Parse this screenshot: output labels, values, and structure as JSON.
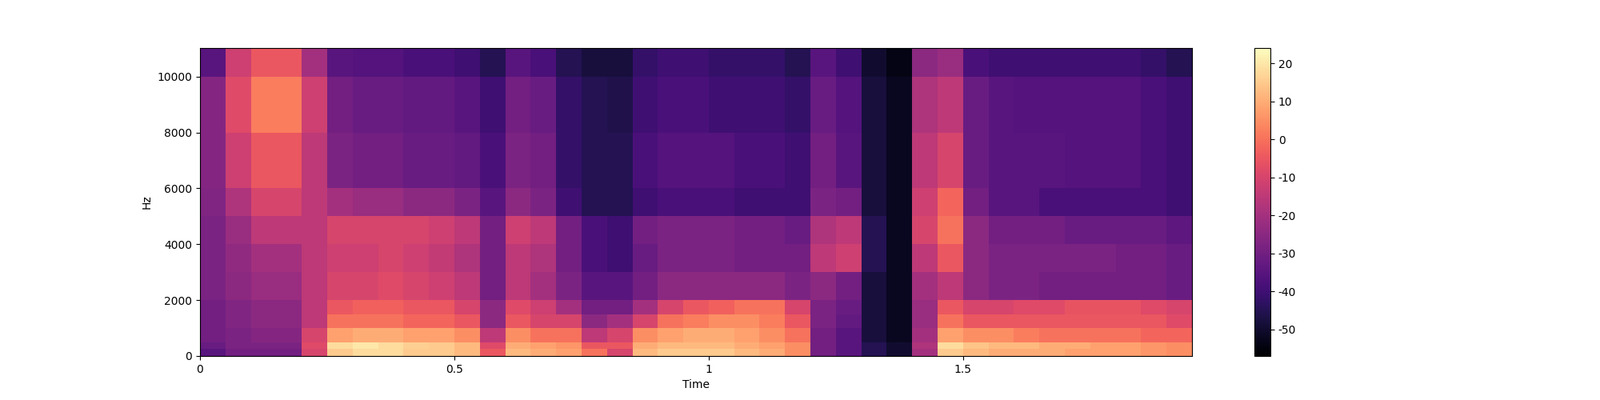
{
  "chart_data": {
    "type": "heatmap",
    "x_label": "Time",
    "y_label": "Hz",
    "xlim": [
      0,
      1.95
    ],
    "xticks": [
      0,
      0.5,
      1,
      1.5
    ],
    "ylim": [
      0,
      11025
    ],
    "yticks": [
      0,
      2000,
      4000,
      6000,
      8000,
      10000
    ],
    "x_edges": [
      0,
      0.05,
      0.1,
      0.15,
      0.2,
      0.25,
      0.3,
      0.35,
      0.4,
      0.45,
      0.5,
      0.55,
      0.6,
      0.65,
      0.7,
      0.75,
      0.8,
      0.85,
      0.9,
      0.95,
      1,
      1.05,
      1.1,
      1.15,
      1.2,
      1.25,
      1.3,
      1.35,
      1.4,
      1.45,
      1.5,
      1.55,
      1.6,
      1.65,
      1.7,
      1.75,
      1.8,
      1.85,
      1.9,
      1.95
    ],
    "y_edges": [
      0,
      250,
      500,
      1000,
      1500,
      2000,
      3000,
      4000,
      5000,
      6000,
      8000,
      10000,
      11025
    ],
    "cells": [
      [
        -35,
        -30,
        -30,
        -30,
        -10,
        15,
        18,
        18,
        15,
        15,
        12,
        -5,
        12,
        10,
        8,
        0,
        -10,
        12,
        15,
        15,
        15,
        12,
        10,
        5,
        -30,
        -35,
        -45,
        -50,
        -20,
        15,
        12,
        10,
        10,
        10,
        8,
        8,
        8,
        6,
        5
      ],
      [
        -32,
        -28,
        -28,
        -28,
        -8,
        18,
        20,
        18,
        16,
        15,
        12,
        -8,
        10,
        8,
        6,
        -5,
        -5,
        10,
        12,
        12,
        12,
        10,
        8,
        5,
        -30,
        -35,
        -45,
        -50,
        -18,
        18,
        14,
        12,
        12,
        10,
        10,
        8,
        8,
        6,
        5
      ],
      [
        -30,
        -28,
        -26,
        -26,
        -10,
        8,
        10,
        10,
        8,
        8,
        5,
        -15,
        5,
        0,
        0,
        -15,
        -10,
        5,
        8,
        10,
        10,
        8,
        5,
        0,
        -30,
        -35,
        -48,
        -52,
        -20,
        8,
        5,
        5,
        2,
        0,
        0,
        0,
        0,
        -2,
        -2
      ],
      [
        -30,
        -27,
        -25,
        -25,
        -15,
        0,
        0,
        0,
        -2,
        -2,
        -5,
        -25,
        -5,
        -10,
        -10,
        -25,
        -20,
        -10,
        0,
        2,
        5,
        5,
        2,
        -5,
        -28,
        -33,
        -48,
        -52,
        -22,
        0,
        -5,
        -5,
        -5,
        -5,
        -5,
        -5,
        -5,
        -5,
        -8
      ],
      [
        -30,
        -27,
        -25,
        -25,
        -15,
        -5,
        -3,
        -3,
        -5,
        -5,
        -10,
        -25,
        -8,
        -12,
        -20,
        -30,
        -30,
        -20,
        -10,
        -5,
        -3,
        0,
        0,
        -10,
        -28,
        -32,
        -48,
        -52,
        -22,
        -5,
        -10,
        -10,
        -8,
        -8,
        -6,
        -6,
        -6,
        -8,
        -10
      ],
      [
        -28,
        -25,
        -22,
        -22,
        -15,
        -10,
        -10,
        -8,
        -10,
        -12,
        -15,
        -30,
        -15,
        -20,
        -28,
        -35,
        -35,
        -30,
        -25,
        -25,
        -25,
        -25,
        -25,
        -28,
        -25,
        -30,
        -48,
        -52,
        -20,
        -15,
        -25,
        -28,
        -28,
        -30,
        -30,
        -30,
        -30,
        -30,
        -32
      ],
      [
        -28,
        -24,
        -20,
        -20,
        -15,
        -12,
        -12,
        -10,
        -12,
        -14,
        -18,
        -30,
        -15,
        -18,
        -30,
        -38,
        -40,
        -32,
        -28,
        -28,
        -28,
        -30,
        -30,
        -30,
        -15,
        -12,
        -45,
        -52,
        -15,
        -5,
        -25,
        -28,
        -28,
        -28,
        -28,
        -28,
        -30,
        -30,
        -32
      ],
      [
        -28,
        -22,
        -15,
        -15,
        -15,
        -10,
        -10,
        -10,
        -10,
        -12,
        -15,
        -30,
        -12,
        -15,
        -30,
        -38,
        -40,
        -30,
        -28,
        -28,
        -28,
        -30,
        -30,
        -32,
        -18,
        -15,
        -45,
        -52,
        -10,
        0,
        -25,
        -30,
        -30,
        -30,
        -32,
        -32,
        -32,
        -32,
        -34
      ],
      [
        -27,
        -18,
        -10,
        -10,
        -15,
        -20,
        -22,
        -22,
        -25,
        -25,
        -28,
        -35,
        -25,
        -28,
        -40,
        -45,
        -45,
        -40,
        -38,
        -38,
        -38,
        -40,
        -40,
        -40,
        -28,
        -30,
        -48,
        -52,
        -12,
        -2,
        -30,
        -35,
        -35,
        -38,
        -38,
        -38,
        -38,
        -38,
        -40
      ],
      [
        -26,
        -12,
        -5,
        -5,
        -15,
        -28,
        -30,
        -30,
        -32,
        -32,
        -33,
        -38,
        -28,
        -30,
        -42,
        -45,
        -45,
        -38,
        -36,
        -36,
        -36,
        -38,
        -38,
        -40,
        -30,
        -35,
        -48,
        -52,
        -15,
        -10,
        -32,
        -35,
        -35,
        -35,
        -36,
        -36,
        -36,
        -38,
        -40
      ],
      [
        -26,
        -8,
        2,
        2,
        -12,
        -30,
        -32,
        -32,
        -33,
        -33,
        -35,
        -40,
        -30,
        -32,
        -42,
        -45,
        -46,
        -40,
        -38,
        -38,
        -40,
        -40,
        -40,
        -42,
        -32,
        -36,
        -48,
        -52,
        -18,
        -15,
        -32,
        -35,
        -36,
        -36,
        -36,
        -36,
        -36,
        -38,
        -40
      ],
      [
        -35,
        -12,
        -5,
        -5,
        -20,
        -35,
        -36,
        -36,
        -38,
        -38,
        -40,
        -45,
        -35,
        -38,
        -45,
        -48,
        -48,
        -42,
        -40,
        -40,
        -42,
        -42,
        -42,
        -45,
        -35,
        -40,
        -50,
        -54,
        -25,
        -22,
        -38,
        -40,
        -40,
        -40,
        -40,
        -40,
        -40,
        -42,
        -45
      ]
    ],
    "colorbar": {
      "range": [
        -57,
        24
      ],
      "ticks": [
        -50,
        -40,
        -30,
        -20,
        -10,
        0,
        10,
        20
      ]
    }
  }
}
